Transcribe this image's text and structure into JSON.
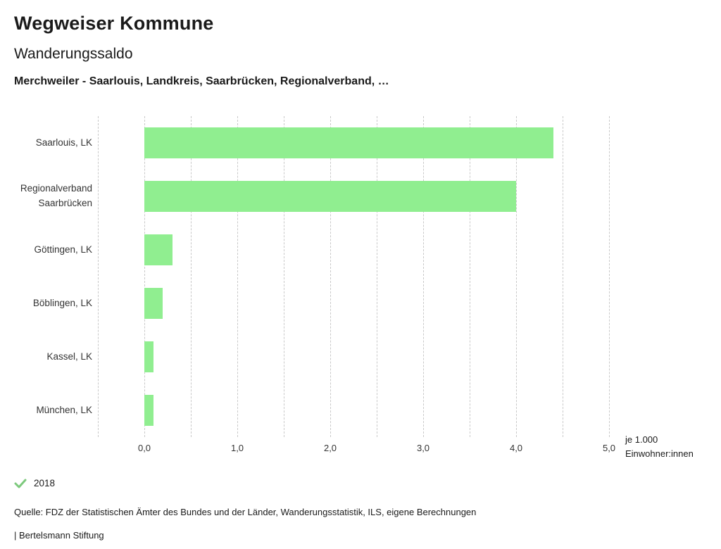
{
  "header": {
    "title": "Wegweiser Kommune",
    "subtitle": "Wanderungssaldo",
    "description": "Merchweiler - Saarlouis, Landkreis, Saarbrücken, Regionalverband, …"
  },
  "chart_data": {
    "type": "bar",
    "orientation": "horizontal",
    "title": "Wanderungssaldo",
    "categories": [
      "Saarlouis, LK",
      "Regionalverband Saarbrücken",
      "Göttingen, LK",
      "Böblingen, LK",
      "Kassel, LK",
      "München, LK"
    ],
    "series": [
      {
        "name": "2018",
        "values": [
          4.4,
          4.0,
          0.3,
          0.2,
          0.1,
          0.1
        ]
      }
    ],
    "bar_color": "#90ee90",
    "grid_color": "#c9c9c9",
    "xlim": [
      -0.5,
      5.0
    ],
    "gridline_step": 0.5,
    "x_ticks": [
      {
        "value": 0,
        "label": "0,0"
      },
      {
        "value": 1,
        "label": "1,0"
      },
      {
        "value": 2,
        "label": "2,0"
      },
      {
        "value": 3,
        "label": "3,0"
      },
      {
        "value": 4,
        "label": "4,0"
      },
      {
        "value": 5,
        "label": "5,0"
      }
    ],
    "unit_label": [
      "je 1.000",
      "Einwohner:innen"
    ],
    "legend": {
      "year": "2018",
      "check_color": "#7dc97d"
    }
  },
  "footer": {
    "source": "Quelle: FDZ der Statistischen Ämter des Bundes und der Länder, Wanderungsstatistik, ILS, eigene Berechnungen",
    "branding": "| Bertelsmann Stiftung"
  }
}
